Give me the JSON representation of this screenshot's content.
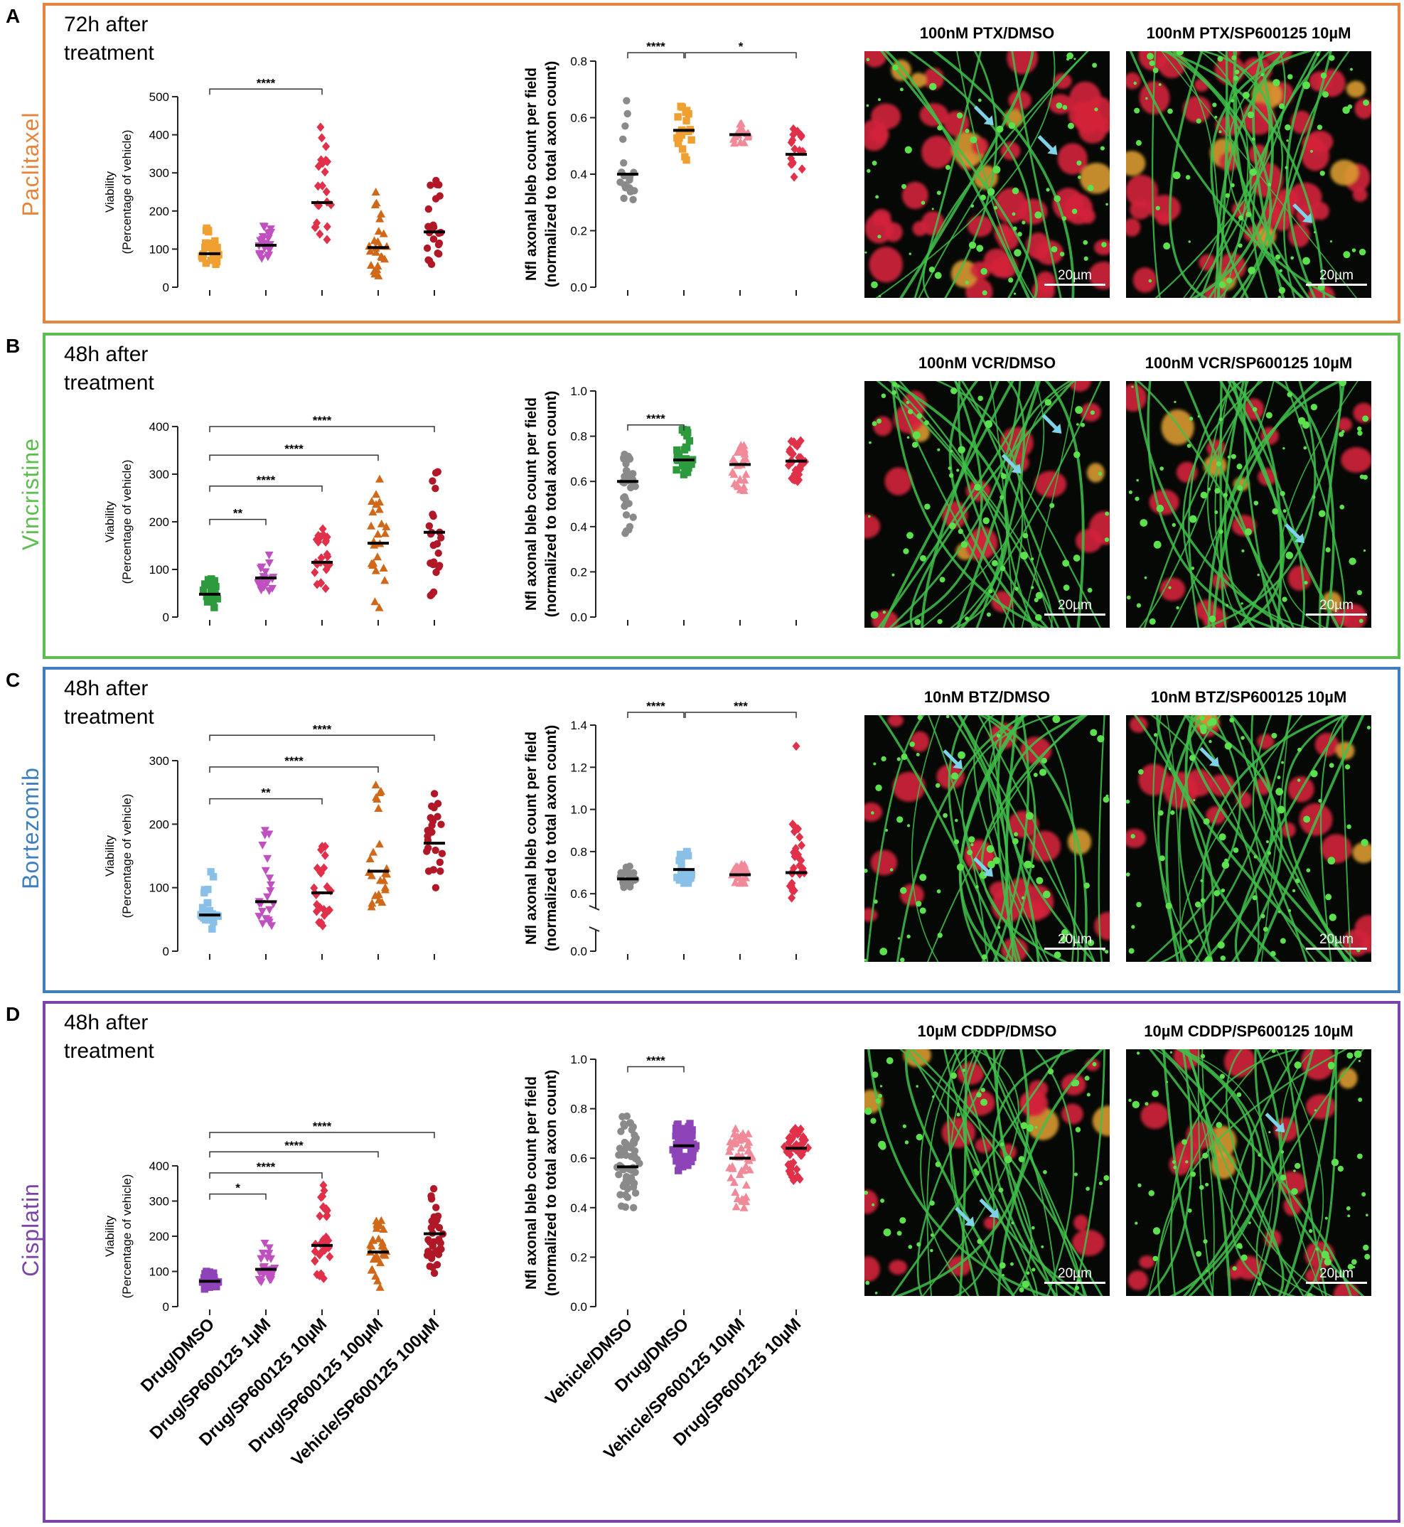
{
  "common": {
    "viability_ylabel_1": "Viability",
    "viability_ylabel_2": "(Percentage of vehicle)",
    "bleb_ylabel_1": "Nfl axonal bleb count per field",
    "bleb_ylabel_2": "(normalized to total axon count)",
    "scalebar": "20µm",
    "viability_categories": [
      "Drug/DMSO",
      "Drug/SP600125 1µM",
      "Drug/SP600125 10µM",
      "Drug/SP600125 100µM",
      "Vehicle/SP600125 100µM"
    ],
    "bleb_categories": [
      "Vehicle/DMSO",
      "Drug/DMSO",
      "Vehicle/SP600125 10µM",
      "Drug/SP600125 10µM"
    ]
  },
  "panels": [
    {
      "letter": "A",
      "drug_label": "Paclitaxel",
      "frame_color": "#E8843C",
      "time_label_1": "72h after",
      "time_label_2": "treatment",
      "images": [
        {
          "title": "100nM PTX/DMSO"
        },
        {
          "title": "100nM PTX/SP600125 10µM"
        }
      ]
    },
    {
      "letter": "B",
      "drug_label": "Vincristine",
      "frame_color": "#5BBE4E",
      "time_label_1": "48h after",
      "time_label_2": "treatment",
      "images": [
        {
          "title": "100nM VCR/DMSO"
        },
        {
          "title": "100nM VCR/SP600125 10µM"
        }
      ]
    },
    {
      "letter": "C",
      "drug_label": "Bortezomib",
      "frame_color": "#3F7FC0",
      "time_label_1": "48h after",
      "time_label_2": "treatment",
      "images": [
        {
          "title": "10nM BTZ/DMSO"
        },
        {
          "title": "10nM BTZ/SP600125 10µM"
        }
      ]
    },
    {
      "letter": "D",
      "drug_label": "Cisplatin",
      "frame_color": "#7B44A8",
      "time_label_1": "48h after",
      "time_label_2": "treatment",
      "images": [
        {
          "title": "10µM CDDP/DMSO"
        },
        {
          "title": "10µM CDDP/SP600125 10µM"
        }
      ]
    }
  ],
  "chart_data": [
    {
      "panel": "A",
      "chart": "viability",
      "type": "scatter",
      "ylim": [
        0,
        500
      ],
      "yticks": [
        0,
        100,
        200,
        300,
        400,
        500
      ],
      "categories": [
        "Drug/DMSO",
        "Drug/SP600125 1µM",
        "Drug/SP600125 10µM",
        "Drug/SP600125 100µM",
        "Vehicle/SP600125 100µM"
      ],
      "colors": [
        "#F0A030",
        "#C050C0",
        "#E0304A",
        "#D0681A",
        "#B01828"
      ],
      "markers": [
        "square",
        "triangle-down",
        "diamond",
        "triangle-up",
        "circle"
      ],
      "means": [
        88,
        110,
        222,
        104,
        145
      ],
      "ranges": [
        [
          60,
          155
        ],
        [
          75,
          160
        ],
        [
          125,
          420
        ],
        [
          30,
          250
        ],
        [
          60,
          280
        ]
      ],
      "counts": [
        22,
        22,
        24,
        24,
        22
      ],
      "significance": [
        {
          "from": 0,
          "to": 2,
          "label": "****",
          "level": 520
        }
      ]
    },
    {
      "panel": "A",
      "chart": "bleb",
      "type": "scatter",
      "ylim": [
        0,
        0.8
      ],
      "yticks": [
        0.0,
        0.2,
        0.4,
        0.6,
        0.8
      ],
      "categories": [
        "Vehicle/DMSO",
        "Drug/DMSO",
        "Vehicle/SP600125 10µM",
        "Drug/SP600125 10µM"
      ],
      "colors": [
        "#8A8A8A",
        "#F0A030",
        "#F08A98",
        "#E0304A"
      ],
      "markers": [
        "circle",
        "square",
        "triangle-up",
        "diamond"
      ],
      "means": [
        0.4,
        0.555,
        0.54,
        0.47
      ],
      "ranges": [
        [
          0.31,
          0.66
        ],
        [
          0.45,
          0.64
        ],
        [
          0.51,
          0.58
        ],
        [
          0.39,
          0.56
        ]
      ],
      "counts": [
        20,
        20,
        18,
        16
      ],
      "significance": [
        {
          "from": 0,
          "to": 1,
          "label": "****",
          "level": 0.83
        },
        {
          "from": 1,
          "to": 3,
          "label": "*",
          "level": 0.83
        }
      ]
    },
    {
      "panel": "B",
      "chart": "viability",
      "type": "scatter",
      "ylim": [
        0,
        400
      ],
      "yticks": [
        0,
        100,
        200,
        300,
        400
      ],
      "categories": [
        "Drug/DMSO",
        "Drug/SP600125 1µM",
        "Drug/SP600125 10µM",
        "Drug/SP600125 100µM",
        "Vehicle/SP600125 100µM"
      ],
      "colors": [
        "#2E9A3E",
        "#C050C0",
        "#E0304A",
        "#D0681A",
        "#B01828"
      ],
      "markers": [
        "square",
        "triangle-down",
        "diamond",
        "triangle-up",
        "circle"
      ],
      "means": [
        48,
        82,
        115,
        155,
        178
      ],
      "ranges": [
        [
          20,
          80
        ],
        [
          55,
          130
        ],
        [
          60,
          185
        ],
        [
          20,
          290
        ],
        [
          45,
          305
        ]
      ],
      "counts": [
        24,
        22,
        24,
        24,
        24
      ],
      "significance": [
        {
          "from": 0,
          "to": 1,
          "label": "**",
          "level": 205
        },
        {
          "from": 0,
          "to": 2,
          "label": "****",
          "level": 275
        },
        {
          "from": 0,
          "to": 3,
          "label": "****",
          "level": 340
        },
        {
          "from": 0,
          "to": 4,
          "label": "****",
          "level": 400
        }
      ]
    },
    {
      "panel": "B",
      "chart": "bleb",
      "type": "scatter",
      "ylim": [
        0,
        1.0
      ],
      "yticks": [
        0.0,
        0.2,
        0.4,
        0.6,
        0.8,
        1.0
      ],
      "categories": [
        "Vehicle/DMSO",
        "Drug/DMSO",
        "Vehicle/SP600125 10µM",
        "Drug/SP600125 10µM"
      ],
      "colors": [
        "#8A8A8A",
        "#2E9A3E",
        "#F08A98",
        "#E0304A"
      ],
      "markers": [
        "circle",
        "square",
        "triangle-up",
        "diamond"
      ],
      "means": [
        0.6,
        0.695,
        0.675,
        0.69
      ],
      "ranges": [
        [
          0.37,
          0.72
        ],
        [
          0.63,
          0.83
        ],
        [
          0.56,
          0.76
        ],
        [
          0.6,
          0.78
        ]
      ],
      "counts": [
        32,
        32,
        28,
        32
      ],
      "significance": [
        {
          "from": 0,
          "to": 1,
          "label": "****",
          "level": 0.85
        }
      ]
    },
    {
      "panel": "C",
      "chart": "viability",
      "type": "scatter",
      "ylim": [
        0,
        300
      ],
      "yticks": [
        0,
        100,
        200,
        300
      ],
      "categories": [
        "Drug/DMSO",
        "Drug/SP600125 1µM",
        "Drug/SP600125 10µM",
        "Drug/SP600125 100µM",
        "Vehicle/SP600125 100µM"
      ],
      "colors": [
        "#88C0E8",
        "#C050C0",
        "#E0304A",
        "#D0681A",
        "#B01828"
      ],
      "markers": [
        "square",
        "triangle-down",
        "diamond",
        "triangle-up",
        "circle"
      ],
      "means": [
        57,
        78,
        92,
        126,
        170
      ],
      "ranges": [
        [
          35,
          125
        ],
        [
          40,
          190
        ],
        [
          40,
          165
        ],
        [
          70,
          262
        ],
        [
          100,
          248
        ]
      ],
      "counts": [
        24,
        22,
        22,
        24,
        22
      ],
      "significance": [
        {
          "from": 0,
          "to": 2,
          "label": "**",
          "level": 240
        },
        {
          "from": 0,
          "to": 3,
          "label": "****",
          "level": 290
        },
        {
          "from": 0,
          "to": 4,
          "label": "****",
          "level": 340
        }
      ]
    },
    {
      "panel": "C",
      "chart": "bleb",
      "type": "scatter",
      "ylim": [
        0,
        1.4
      ],
      "yticks": [
        0.0,
        0.6,
        0.8,
        1.0,
        1.2,
        1.4
      ],
      "axis_break": [
        0.05,
        0.55
      ],
      "categories": [
        "Vehicle/DMSO",
        "Drug/DMSO",
        "Vehicle/SP600125 10µM",
        "Drug/SP600125 10µM"
      ],
      "colors": [
        "#8A8A8A",
        "#88C0E8",
        "#F08A98",
        "#E0304A"
      ],
      "markers": [
        "circle",
        "square",
        "triangle-up",
        "diamond"
      ],
      "means": [
        0.67,
        0.715,
        0.69,
        0.7
      ],
      "ranges": [
        [
          0.63,
          0.73
        ],
        [
          0.65,
          0.8
        ],
        [
          0.65,
          0.74
        ],
        [
          0.58,
          0.93
        ]
      ],
      "outliers": [
        null,
        null,
        null,
        1.3
      ],
      "counts": [
        24,
        28,
        24,
        28
      ],
      "significance": [
        {
          "from": 0,
          "to": 1,
          "label": "****",
          "level": 1.45
        },
        {
          "from": 1,
          "to": 3,
          "label": "***",
          "level": 1.45
        }
      ]
    },
    {
      "panel": "D",
      "chart": "viability",
      "type": "scatter",
      "ylim": [
        0,
        400
      ],
      "yticks": [
        0,
        100,
        200,
        300,
        400
      ],
      "categories": [
        "Drug/DMSO",
        "Drug/SP600125 1µM",
        "Drug/SP600125 10µM",
        "Drug/SP600125 100µM",
        "Vehicle/SP600125 100µM"
      ],
      "colors": [
        "#8E44B8",
        "#C050C0",
        "#E0304A",
        "#D0681A",
        "#B01828"
      ],
      "markers": [
        "square",
        "triangle-down",
        "diamond",
        "triangle-up",
        "circle"
      ],
      "means": [
        72,
        106,
        174,
        155,
        207
      ],
      "ranges": [
        [
          50,
          100
        ],
        [
          70,
          180
        ],
        [
          80,
          345
        ],
        [
          55,
          245
        ],
        [
          95,
          335
        ]
      ],
      "counts": [
        30,
        30,
        32,
        32,
        32
      ],
      "significance": [
        {
          "from": 0,
          "to": 1,
          "label": "*",
          "level": 320
        },
        {
          "from": 0,
          "to": 2,
          "label": "****",
          "level": 380
        },
        {
          "from": 0,
          "to": 3,
          "label": "****",
          "level": 440
        },
        {
          "from": 0,
          "to": 4,
          "label": "****",
          "level": 495
        }
      ]
    },
    {
      "panel": "D",
      "chart": "bleb",
      "type": "scatter",
      "ylim": [
        0,
        1.0
      ],
      "yticks": [
        0.0,
        0.2,
        0.4,
        0.6,
        0.8,
        1.0
      ],
      "categories": [
        "Vehicle/DMSO",
        "Drug/DMSO",
        "Vehicle/SP600125 10µM",
        "Drug/SP600125 10µM"
      ],
      "colors": [
        "#8A8A8A",
        "#8E44B8",
        "#F08A98",
        "#E0304A"
      ],
      "markers": [
        "circle",
        "square",
        "triangle-up",
        "diamond"
      ],
      "means": [
        0.565,
        0.65,
        0.6,
        0.64
      ],
      "ranges": [
        [
          0.4,
          0.77
        ],
        [
          0.55,
          0.74
        ],
        [
          0.4,
          0.72
        ],
        [
          0.51,
          0.72
        ]
      ],
      "counts": [
        60,
        52,
        52,
        52
      ],
      "significance": [
        {
          "from": 0,
          "to": 1,
          "label": "****",
          "level": 0.97
        }
      ]
    }
  ]
}
